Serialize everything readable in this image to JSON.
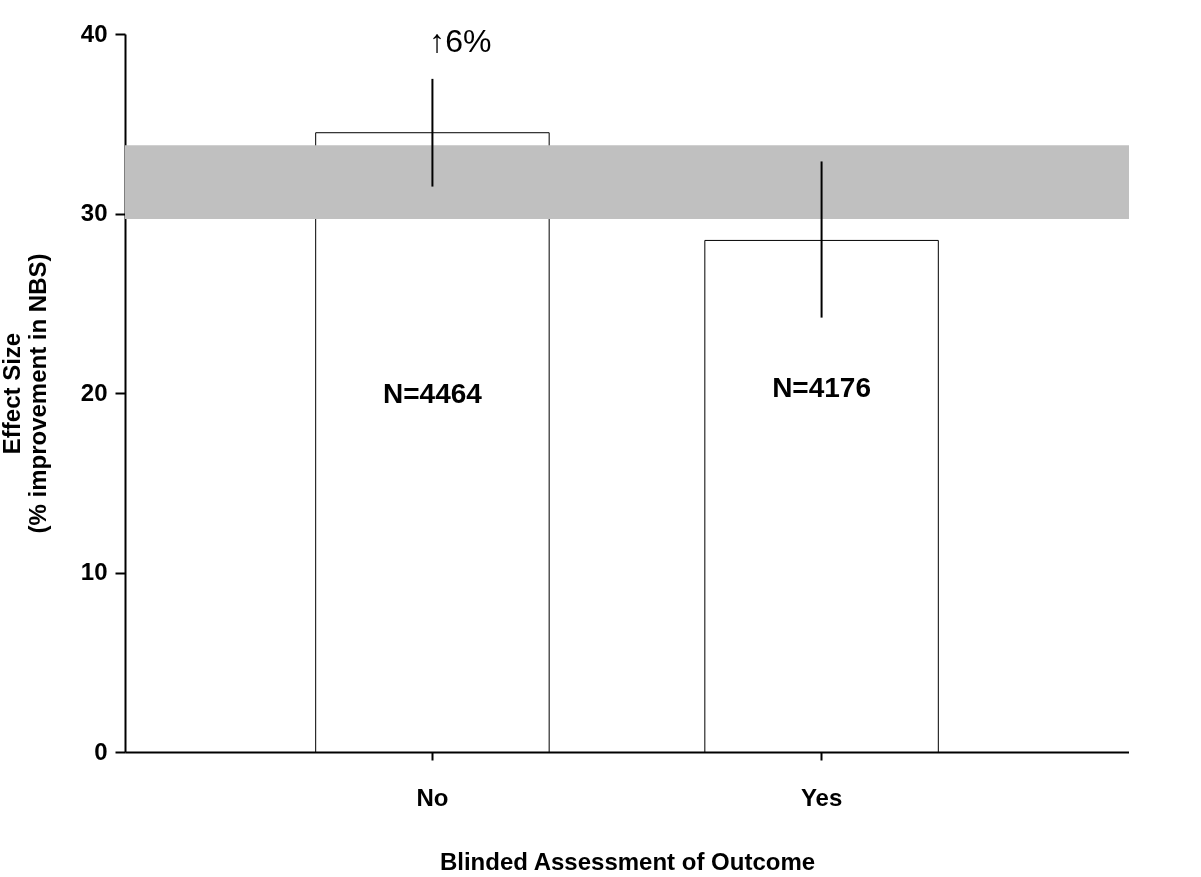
{
  "chart_data": {
    "type": "bar",
    "xlabel": "Blinded Assessment of Outcome",
    "ylabel": "Effect Size\n(% improvement in NBS)",
    "categories": [
      "No",
      "Yes"
    ],
    "values": [
      34.5,
      28.5
    ],
    "color": "#ffffff",
    "errors": [
      [
        31.5,
        37.5
      ],
      [
        24.2,
        32.9
      ]
    ],
    "ylim": [
      0,
      40
    ],
    "yticks": [
      0,
      10,
      20,
      30,
      40
    ],
    "bands": [
      {
        "axis": "y",
        "from": 29.7,
        "to": 33.8,
        "color": "#c0c0c0"
      }
    ],
    "annotations": [
      "↑6%",
      "N=4464",
      "N=4176"
    ]
  }
}
